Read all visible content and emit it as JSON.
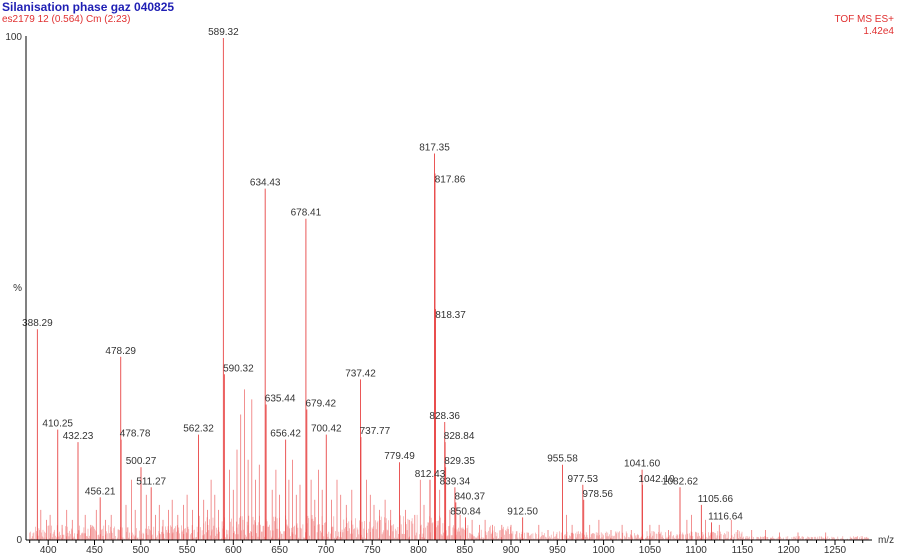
{
  "header": {
    "title": "Silanisation phase gaz 040825",
    "subtitle": "es2179 12 (0.564) Cm (2:23)",
    "mode": "TOF MS ES+",
    "max_intensity": "1.42e4"
  },
  "colors": {
    "title": "#1f1fb4",
    "header_red": "#e03030",
    "spectrum": "#e84545",
    "axis": "#000000",
    "peak_label": "#333333"
  },
  "chart_data": {
    "type": "bar",
    "x_unit_label": "m/z",
    "y_unit_label": "%",
    "xlim": [
      376,
      1290
    ],
    "ylim": [
      0,
      100
    ],
    "x_ticks": [
      "400",
      "450",
      "500",
      "550",
      "600",
      "650",
      "700",
      "750",
      "800",
      "850",
      "900",
      "950",
      "1000",
      "1050",
      "1100",
      "1150",
      "1200",
      "1250"
    ],
    "y_ticks": [
      "0",
      "100"
    ],
    "labeled_peaks": [
      {
        "mz": 388.29,
        "label": "388.29",
        "rel": 42
      },
      {
        "mz": 410.25,
        "label": "410.25",
        "rel": 22
      },
      {
        "mz": 432.23,
        "label": "432.23",
        "rel": 19.5
      },
      {
        "mz": 456.21,
        "label": "456.21",
        "rel": 8.5
      },
      {
        "mz": 478.29,
        "label": "478.29",
        "rel": 36.5
      },
      {
        "mz": 478.78,
        "label": "478.78",
        "rel": 20
      },
      {
        "mz": 500.27,
        "label": "500.27",
        "rel": 14.5
      },
      {
        "mz": 511.27,
        "label": "511.27",
        "rel": 10.5
      },
      {
        "mz": 562.32,
        "label": "562.32",
        "rel": 21
      },
      {
        "mz": 589.32,
        "label": "589.32",
        "rel": 100
      },
      {
        "mz": 590.32,
        "label": "590.32",
        "rel": 33
      },
      {
        "mz": 634.43,
        "label": "634.43",
        "rel": 70
      },
      {
        "mz": 635.44,
        "label": "635.44",
        "rel": 27
      },
      {
        "mz": 656.42,
        "label": "656.42",
        "rel": 20
      },
      {
        "mz": 678.41,
        "label": "678.41",
        "rel": 64
      },
      {
        "mz": 679.42,
        "label": "679.42",
        "rel": 26
      },
      {
        "mz": 700.42,
        "label": "700.42",
        "rel": 21
      },
      {
        "mz": 737.42,
        "label": "737.42",
        "rel": 32
      },
      {
        "mz": 737.77,
        "label": "737.77",
        "rel": 20.5
      },
      {
        "mz": 779.49,
        "label": "779.49",
        "rel": 15.5
      },
      {
        "mz": 812.43,
        "label": "812.43",
        "rel": 12
      },
      {
        "mz": 817.35,
        "label": "817.35",
        "rel": 77
      },
      {
        "mz": 817.86,
        "label": "817.86",
        "rel": 73
      },
      {
        "mz": 818.37,
        "label": "818.37",
        "rel": 46
      },
      {
        "mz": 828.36,
        "label": "828.36",
        "rel": 23.5
      },
      {
        "mz": 828.84,
        "label": "828.84",
        "rel": 19.5
      },
      {
        "mz": 829.35,
        "label": "829.35",
        "rel": 14.5
      },
      {
        "mz": 839.34,
        "label": "839.34",
        "rel": 10.5
      },
      {
        "mz": 840.37,
        "label": "840.37",
        "rel": 7.5
      },
      {
        "mz": 850.84,
        "label": "850.84",
        "rel": 4.5
      },
      {
        "mz": 912.5,
        "label": "912.50",
        "rel": 4.5
      },
      {
        "mz": 955.58,
        "label": "955.58",
        "rel": 15
      },
      {
        "mz": 977.53,
        "label": "977.53",
        "rel": 11
      },
      {
        "mz": 978.56,
        "label": "978.56",
        "rel": 8
      },
      {
        "mz": 1041.6,
        "label": "1041.60",
        "rel": 14
      },
      {
        "mz": 1042.1,
        "label": "1042.10",
        "rel": 11
      },
      {
        "mz": 1082.62,
        "label": "1082.62",
        "rel": 10.5
      },
      {
        "mz": 1105.66,
        "label": "1105.66",
        "rel": 7
      },
      {
        "mz": 1116.64,
        "label": "1116.64",
        "rel": 3.5
      }
    ],
    "minor_peaks": [
      [
        392,
        6
      ],
      [
        398,
        4
      ],
      [
        402,
        5
      ],
      [
        415,
        3
      ],
      [
        420,
        6
      ],
      [
        426,
        4
      ],
      [
        440,
        5
      ],
      [
        446,
        3
      ],
      [
        452,
        6
      ],
      [
        462,
        4
      ],
      [
        468,
        5
      ],
      [
        484,
        7
      ],
      [
        490,
        12
      ],
      [
        494,
        6
      ],
      [
        506,
        9
      ],
      [
        516,
        5
      ],
      [
        520,
        7
      ],
      [
        524,
        4
      ],
      [
        530,
        6
      ],
      [
        534,
        8
      ],
      [
        540,
        5
      ],
      [
        546,
        7
      ],
      [
        550,
        9
      ],
      [
        556,
        6
      ],
      [
        568,
        8
      ],
      [
        572,
        6
      ],
      [
        576,
        12
      ],
      [
        580,
        9
      ],
      [
        584,
        6
      ],
      [
        596,
        14
      ],
      [
        600,
        10
      ],
      [
        604,
        18
      ],
      [
        608,
        25
      ],
      [
        612,
        30
      ],
      [
        616,
        16
      ],
      [
        620,
        28
      ],
      [
        624,
        12
      ],
      [
        628,
        15
      ],
      [
        642,
        10
      ],
      [
        646,
        14
      ],
      [
        650,
        9
      ],
      [
        660,
        12
      ],
      [
        664,
        16
      ],
      [
        668,
        9
      ],
      [
        672,
        11
      ],
      [
        684,
        12
      ],
      [
        688,
        8
      ],
      [
        692,
        14
      ],
      [
        696,
        10
      ],
      [
        706,
        8
      ],
      [
        712,
        12
      ],
      [
        716,
        9
      ],
      [
        722,
        7
      ],
      [
        728,
        10
      ],
      [
        744,
        12
      ],
      [
        748,
        9
      ],
      [
        752,
        7
      ],
      [
        758,
        6
      ],
      [
        764,
        8
      ],
      [
        770,
        6
      ],
      [
        786,
        6
      ],
      [
        790,
        4
      ],
      [
        796,
        5
      ],
      [
        802,
        12
      ],
      [
        806,
        7
      ],
      [
        823,
        10
      ],
      [
        834,
        6
      ],
      [
        845,
        5
      ],
      [
        858,
        4
      ],
      [
        866,
        3
      ],
      [
        872,
        4
      ],
      [
        880,
        3
      ],
      [
        890,
        3
      ],
      [
        900,
        3
      ],
      [
        930,
        3
      ],
      [
        940,
        2
      ],
      [
        960,
        5
      ],
      [
        966,
        3
      ],
      [
        985,
        3
      ],
      [
        995,
        4
      ],
      [
        1008,
        2
      ],
      [
        1020,
        3
      ],
      [
        1030,
        2
      ],
      [
        1050,
        3
      ],
      [
        1060,
        3
      ],
      [
        1070,
        2
      ],
      [
        1090,
        4
      ],
      [
        1095,
        5
      ],
      [
        1110,
        4
      ],
      [
        1125,
        3
      ],
      [
        1138,
        4
      ],
      [
        1145,
        2
      ],
      [
        1160,
        2
      ],
      [
        1175,
        2
      ],
      [
        1190,
        1.5
      ],
      [
        1210,
        1.5
      ],
      [
        1240,
        1.5
      ]
    ]
  }
}
